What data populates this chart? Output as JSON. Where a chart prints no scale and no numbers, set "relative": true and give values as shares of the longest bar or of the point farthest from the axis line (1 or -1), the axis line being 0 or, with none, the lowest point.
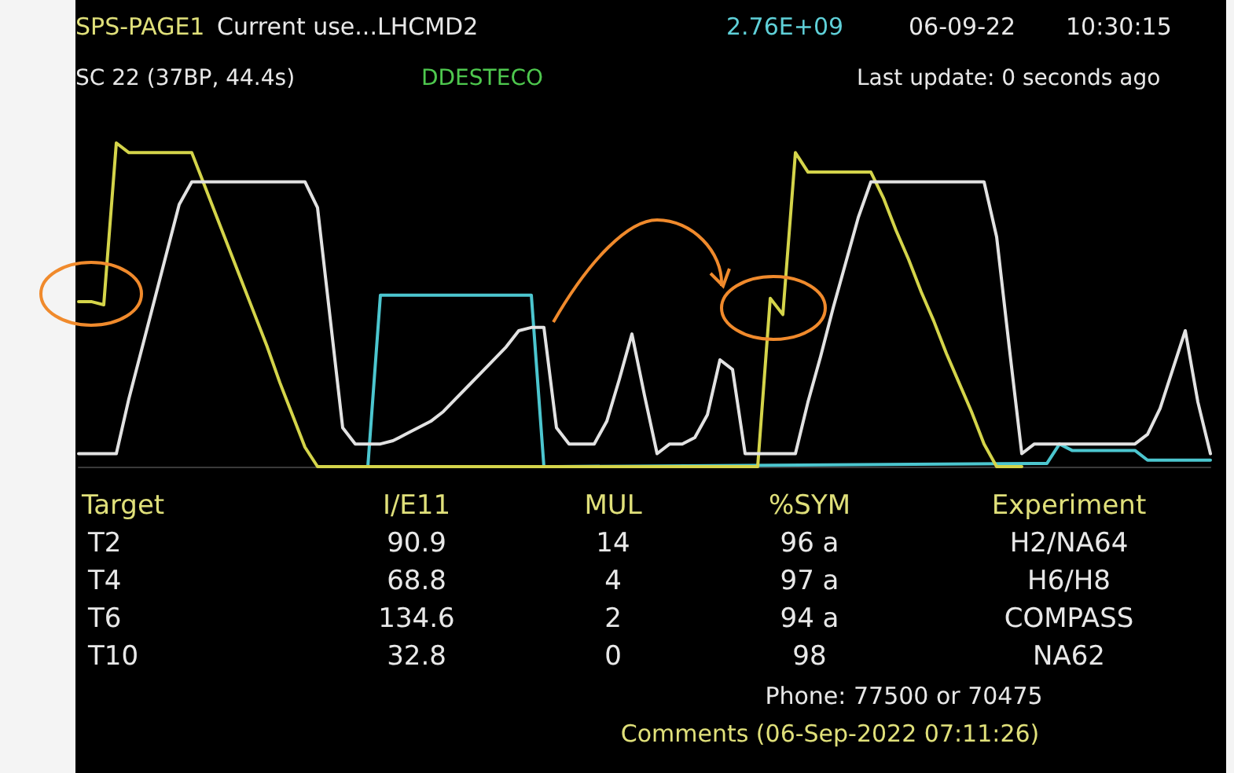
{
  "chart_data": {
    "type": "line",
    "relative": true,
    "marker": "none",
    "categories": [
      null,
      null,
      null,
      null,
      null,
      null,
      null,
      null,
      null,
      null,
      null,
      null,
      null,
      null,
      null,
      null,
      null,
      null,
      null,
      null,
      null,
      null,
      null,
      null,
      null,
      null,
      null,
      null,
      null,
      null,
      null,
      null,
      null,
      null,
      null,
      null,
      null,
      null,
      null,
      null,
      null,
      null,
      null,
      null,
      null,
      null,
      null,
      null,
      null,
      null,
      null,
      null,
      null,
      null,
      null,
      null,
      null,
      null,
      null,
      null,
      null,
      null,
      null,
      null,
      null,
      null,
      null,
      null,
      null,
      null,
      null,
      null,
      null,
      null,
      null,
      null,
      null,
      null,
      null,
      null,
      null,
      null,
      null,
      null,
      null,
      null,
      null,
      null,
      null,
      null,
      null
    ],
    "series": [
      {
        "color": "#e2e2e2",
        "values": [
          0.04,
          0.04,
          0.04,
          0.04,
          0.21,
          0.36,
          0.51,
          0.66,
          0.81,
          0.88,
          0.88,
          0.88,
          0.88,
          0.88,
          0.88,
          0.88,
          0.88,
          0.88,
          0.88,
          0.8,
          0.46,
          0.12,
          0.07,
          0.07,
          0.07,
          0.08,
          0.1,
          0.12,
          0.14,
          0.17,
          0.21,
          0.25,
          0.29,
          0.33,
          0.37,
          0.42,
          0.43,
          0.43,
          0.12,
          0.07,
          0.07,
          0.07,
          0.14,
          0.27,
          0.41,
          0.22,
          0.04,
          0.07,
          0.07,
          0.09,
          0.16,
          0.33,
          0.3,
          0.04,
          0.04,
          0.04,
          0.04,
          0.04,
          0.2,
          0.34,
          0.49,
          0.63,
          0.77,
          0.88,
          0.88,
          0.88,
          0.88,
          0.88,
          0.88,
          0.88,
          0.88,
          0.88,
          0.88,
          0.71,
          0.37,
          0.04,
          0.07,
          0.07,
          0.07,
          0.07,
          0.07,
          0.07,
          0.07,
          0.07,
          0.07,
          0.1,
          0.18,
          0.3,
          0.42,
          0.2,
          0.04
        ]
      },
      {
        "color": "#d4d44a",
        "values": [
          0.51,
          0.51,
          0.5,
          1.0,
          0.97,
          0.97,
          0.97,
          0.97,
          0.97,
          0.97,
          0.87,
          0.77,
          0.67,
          0.57,
          0.47,
          0.37,
          0.26,
          0.16,
          0.06,
          0,
          0,
          0,
          null,
          null,
          null,
          null,
          null,
          null,
          null,
          null,
          null,
          null,
          null,
          null,
          null,
          null,
          null,
          null,
          null,
          0,
          0,
          0,
          0,
          0,
          0,
          0,
          0,
          0,
          0,
          0,
          0,
          0,
          0,
          0,
          0,
          0.52,
          0.47,
          0.97,
          0.91,
          0.91,
          0.91,
          0.91,
          0.91,
          0.91,
          0.83,
          0.73,
          0.64,
          0.54,
          0.45,
          0.35,
          0.26,
          0.17,
          0.07,
          0,
          0,
          0,
          null,
          null,
          null,
          null,
          null,
          null,
          null,
          null,
          null,
          null,
          null,
          null,
          null,
          null,
          null
        ]
      },
      {
        "color": "#4cc6cf",
        "values": [
          null,
          null,
          null,
          null,
          null,
          null,
          null,
          null,
          null,
          null,
          null,
          null,
          null,
          null,
          null,
          null,
          null,
          null,
          null,
          null,
          null,
          null,
          0,
          0,
          0.53,
          0.53,
          0.53,
          0.53,
          0.53,
          0.53,
          0.53,
          0.53,
          0.53,
          0.53,
          0.53,
          0.53,
          0.53,
          0,
          0,
          null,
          null,
          null,
          null,
          null,
          null,
          null,
          null,
          null,
          null,
          null,
          null,
          null,
          null,
          null,
          null,
          null,
          null,
          null,
          null,
          null,
          null,
          null,
          null,
          null,
          null,
          null,
          null,
          null,
          null,
          null,
          null,
          null,
          null,
          null,
          null,
          null,
          0.01,
          0.01,
          0.07,
          0.05,
          0.05,
          0.05,
          0.05,
          0.05,
          0.05,
          0.02,
          0.02,
          0.02,
          0.02,
          0.02,
          0.02
        ]
      }
    ],
    "annotations": [
      "SPS-PAGE1",
      "Current use...LHCMD2",
      "2.76E+09",
      "06-09-22",
      "10:30:15",
      "SC 22 (37BP, 44.4s)",
      "DDESTECO",
      "Last update: 0 seconds ago",
      "Target",
      "I/E11",
      "MUL",
      "%SYM",
      "Experiment",
      "T2",
      "90.9",
      "14",
      "96 a",
      "H2/NA64",
      "T4",
      "68.8",
      "4",
      "97 a",
      "H6/H8",
      "T6",
      "134.6",
      "2",
      "94 a",
      "COMPASS",
      "T10",
      "32.8",
      "0",
      "98",
      "NA62",
      "Phone: 77500 or 70475",
      "Comments (06-Sep-2022 07:11:26)"
    ]
  }
}
